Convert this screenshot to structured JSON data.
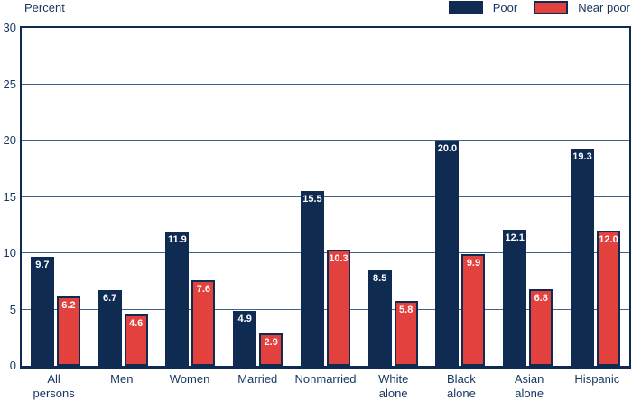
{
  "chart_data": {
    "type": "bar",
    "title": "",
    "ylabel": "Percent",
    "xlabel": "",
    "categories": [
      "All\npersons",
      "Men",
      "Women",
      "Married",
      "Nonmarried",
      "White\nalone",
      "Black\nalone",
      "Asian\nalone",
      "Hispanic"
    ],
    "series": [
      {
        "name": "Poor",
        "color": "#0f2b51",
        "values": [
          9.7,
          6.7,
          11.9,
          4.9,
          15.5,
          8.5,
          20.0,
          12.1,
          19.3
        ]
      },
      {
        "name": "Near poor",
        "color": "#e2413e",
        "values": [
          6.2,
          4.6,
          7.6,
          2.9,
          10.3,
          5.8,
          9.9,
          6.8,
          12.0
        ]
      }
    ],
    "ylim": [
      0,
      30
    ],
    "yticks": [
      0,
      5,
      10,
      15,
      20,
      25,
      30
    ],
    "grid": true,
    "legend_position": "top-right",
    "value_labels": true,
    "value_label_color": "#ffffff",
    "gridline_color": "#3f6287",
    "axis_text_color": "#16365f"
  }
}
